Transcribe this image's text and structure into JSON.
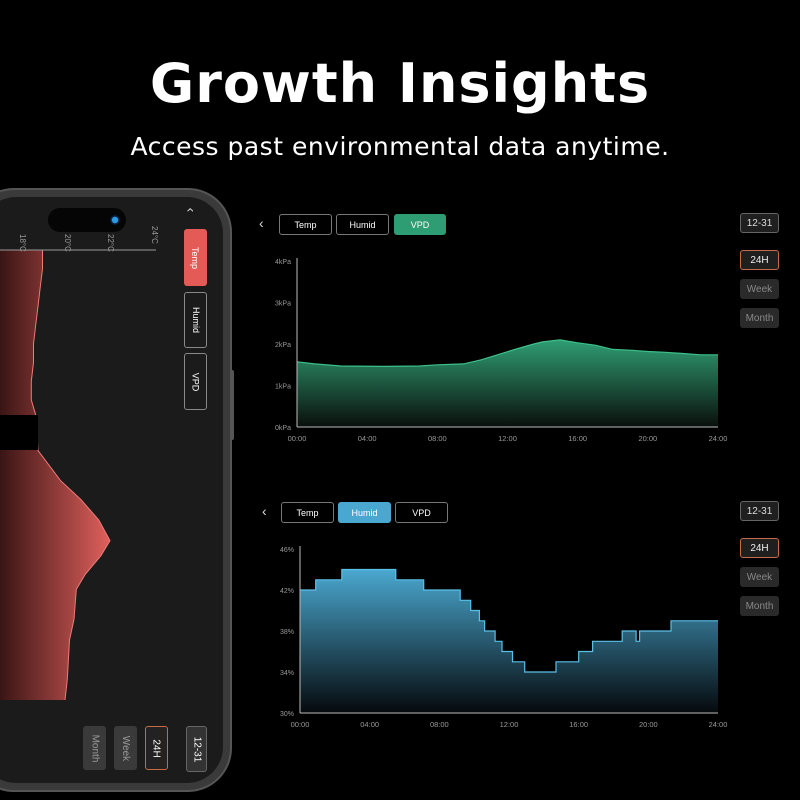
{
  "header": {
    "title": "Growth Insights",
    "subtitle": "Access past environmental data anytime."
  },
  "colors": {
    "temp": "#e35a57",
    "humid": "#4aa8d0",
    "vpd": "#2f9d73",
    "selected_range_border": "#c86a45"
  },
  "icons": {
    "back": "chevron-left-icon",
    "phone_back": "chevron-up-icon",
    "notch_camera": "camera-dot-icon"
  },
  "tabs": [
    "Temp",
    "Humid",
    "VPD"
  ],
  "date": "12-31",
  "ranges": [
    "24H",
    "Week",
    "Month"
  ],
  "selected_range": "24H",
  "chart_data": [
    {
      "type": "area",
      "panel": "phone",
      "selected_tab": "Temp",
      "orientation": "rotated",
      "x_axis_label_ticks": [
        "18°C",
        "20°C",
        "22°C",
        "24°C"
      ],
      "xlim": [
        18,
        24
      ],
      "time_range": [
        "00:00",
        "24:00"
      ],
      "series": [
        {
          "time_hours": [
            0,
            1,
            2,
            3,
            4,
            5,
            6,
            7,
            8,
            8.8,
            10.7,
            12.3,
            13.3,
            14.4,
            15.5,
            16.3,
            17.3,
            18.1,
            19.7,
            20.8,
            22.9,
            24
          ],
          "values": [
            19.0,
            19.0,
            18.9,
            18.8,
            18.7,
            18.6,
            18.6,
            18.5,
            18.5,
            18.7,
            18.8,
            19.8,
            20.7,
            21.5,
            22.0,
            21.6,
            20.9,
            20.5,
            20.4,
            20.2,
            20.1,
            20.0
          ]
        }
      ]
    },
    {
      "type": "area",
      "panel": "top",
      "selected_tab": "VPD",
      "yticks": [
        "0kPa",
        "1kPa",
        "2kPa",
        "3kPa",
        "4kPa"
      ],
      "ylim": [
        0,
        4
      ],
      "xticks": [
        "00:00",
        "04:00",
        "08:00",
        "12:00",
        "16:00",
        "20:00",
        "24:00"
      ],
      "series": [
        {
          "time_hours": [
            0,
            1,
            2.5,
            5,
            7,
            8,
            9.5,
            10.5,
            11.5,
            12.5,
            13.5,
            14,
            15,
            16,
            17,
            18,
            19,
            20,
            21,
            22,
            23,
            24
          ],
          "values": [
            1.57,
            1.52,
            1.47,
            1.46,
            1.47,
            1.5,
            1.52,
            1.62,
            1.75,
            1.88,
            2.0,
            2.05,
            2.1,
            2.03,
            1.97,
            1.87,
            1.85,
            1.82,
            1.8,
            1.77,
            1.74,
            1.74
          ]
        }
      ]
    },
    {
      "type": "area",
      "panel": "bottom",
      "selected_tab": "Humid",
      "yticks": [
        "30%",
        "34%",
        "38%",
        "42%",
        "46%"
      ],
      "ylim": [
        30,
        46
      ],
      "xticks": [
        "00:00",
        "04:00",
        "08:00",
        "12:00",
        "16:00",
        "20:00",
        "24:00"
      ],
      "step": true,
      "series": [
        {
          "time_hours": [
            0,
            0.9,
            2.4,
            5.5,
            7.1,
            9.2,
            9.8,
            10.3,
            10.6,
            11.2,
            11.6,
            12.2,
            12.9,
            14.7,
            16.0,
            16.8,
            18.5,
            19.3,
            19.5,
            21.3,
            24
          ],
          "values": [
            42,
            43,
            44,
            43,
            42,
            41,
            40,
            39,
            38,
            37,
            36,
            35,
            34,
            35,
            36,
            37,
            38,
            37,
            38,
            39,
            39
          ]
        }
      ]
    }
  ]
}
